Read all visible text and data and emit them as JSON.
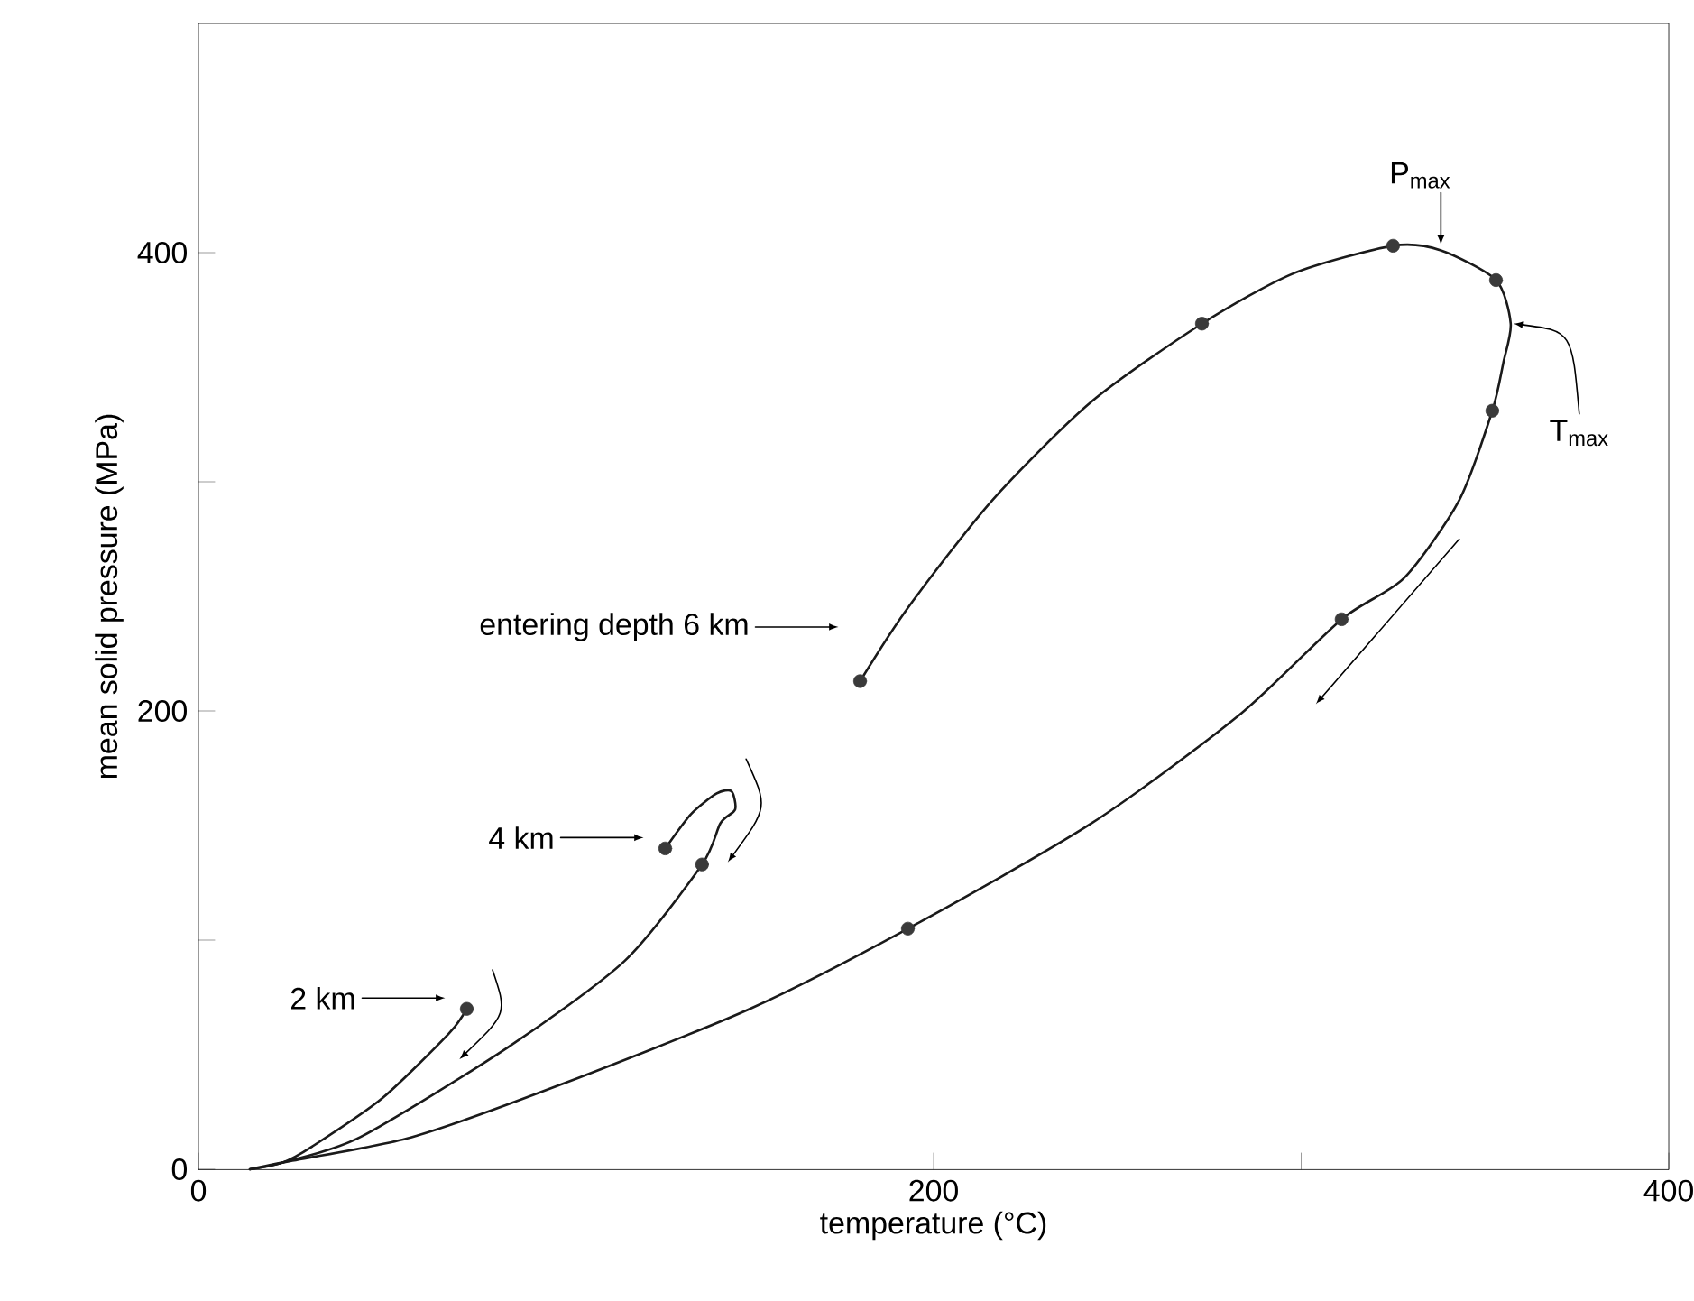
{
  "chart_data": {
    "type": "line",
    "xlabel": "temperature (°C)",
    "ylabel": "mean solid pressure (MPa)",
    "xlim": [
      0,
      400
    ],
    "ylim": [
      0,
      500
    ],
    "xticks": [
      0,
      {
        "value": 100,
        "label": null
      },
      200,
      {
        "value": 300,
        "label": null
      },
      400
    ],
    "yticks": [
      0,
      {
        "value": 100,
        "label": null
      },
      200,
      {
        "value": 300,
        "label": null
      },
      400
    ],
    "grid": false,
    "marker": "none",
    "line_style": "solid",
    "series": [
      {
        "name": "entering depth 6 km",
        "color": "#1a1a1a",
        "x": [
          180,
          193,
          216,
          243,
          273,
          298,
          325,
          338,
          353,
          357,
          355,
          352,
          343,
          328,
          311,
          283,
          243,
          193,
          150,
          97,
          58,
          23,
          14
        ],
        "values": [
          213,
          245,
          292,
          335,
          369,
          391,
          403,
          401,
          388,
          369,
          352,
          331,
          292,
          258,
          240,
          198,
          151,
          105,
          70,
          36,
          14,
          3,
          0
        ]
      },
      {
        "name": "4 km",
        "color": "#1a1a1a",
        "x": [
          127,
          134,
          141,
          145,
          146,
          142,
          137,
          116,
          84,
          44,
          23,
          14
        ],
        "values": [
          140,
          155,
          164,
          165,
          157,
          151,
          133,
          91,
          53,
          14,
          3,
          0
        ]
      },
      {
        "name": "2 km",
        "color": "#1a1a1a",
        "x": [
          73,
          68,
          50,
          31,
          23,
          14
        ],
        "values": [
          70,
          59,
          31,
          10,
          3,
          0
        ]
      },
      {
        "type": "scatter",
        "marker": "circle",
        "color": "#3a3a3a",
        "x": [
          180,
          273,
          325,
          353,
          352,
          311,
          193,
          127,
          137,
          73
        ],
        "values": [
          213,
          369,
          403,
          388,
          331,
          240,
          105,
          140,
          133,
          70
        ]
      }
    ],
    "annotations": [
      {
        "text": "P$_{max}$",
        "x": 338,
        "y": 401
      },
      {
        "text": "T$_{max}$",
        "x": 357,
        "y": 369
      }
    ]
  }
}
